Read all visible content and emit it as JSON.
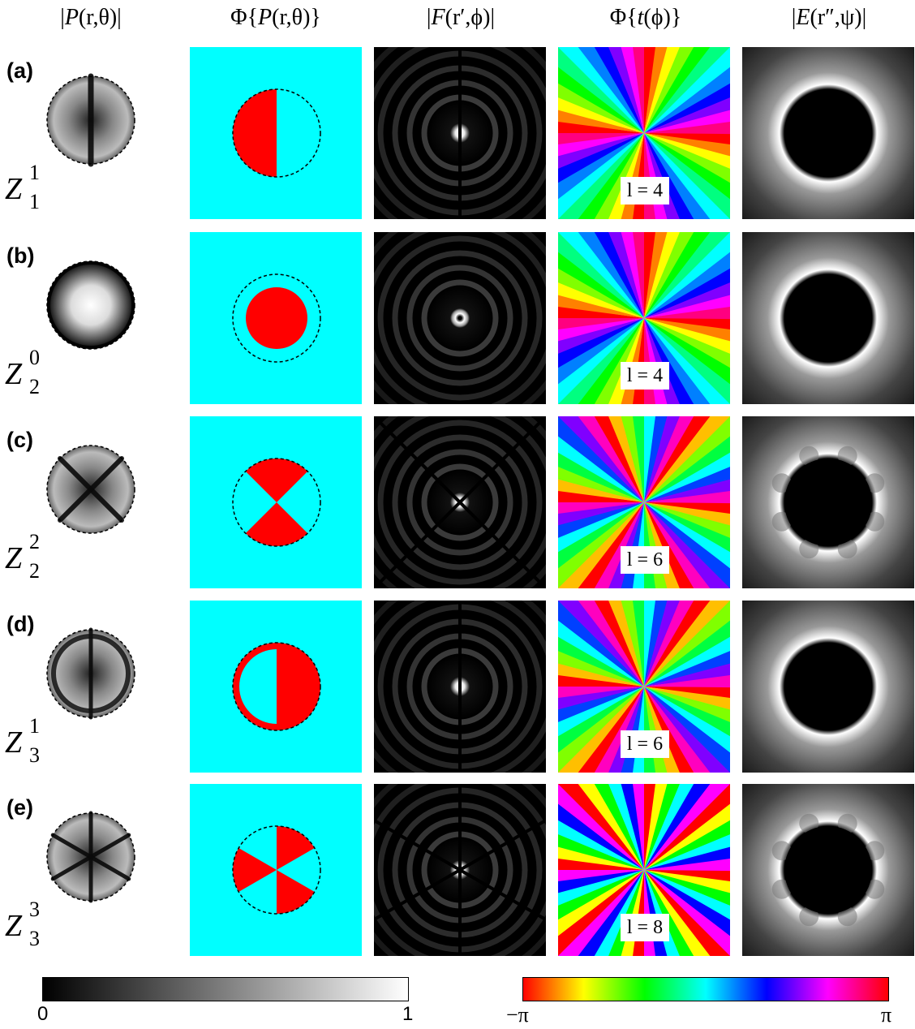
{
  "headers": [
    {
      "pre": "|",
      "it": "P",
      "post": "(r,θ)|"
    },
    {
      "pre": "Φ{",
      "it": "P",
      "post": "(r,θ)}"
    },
    {
      "pre": "|",
      "it": "F",
      "post": "(r′,ϕ)|"
    },
    {
      "pre": "Φ{",
      "it": "t",
      "post": "(ϕ)}"
    },
    {
      "pre": "|",
      "it": "E",
      "post": "(r″,ψ)|"
    }
  ],
  "rows": [
    {
      "label": "(a)",
      "zn": "1",
      "zm": "1",
      "l_text": "l = 4",
      "l": 4,
      "type": "z11"
    },
    {
      "label": "(b)",
      "zn": "2",
      "zm": "0",
      "l_text": "l = 4",
      "l": 4,
      "type": "z20"
    },
    {
      "label": "(c)",
      "zn": "2",
      "zm": "2",
      "l_text": "l = 6",
      "l": 6,
      "type": "z22"
    },
    {
      "label": "(d)",
      "zn": "3",
      "zm": "1",
      "l_text": "l = 6",
      "l": 6,
      "type": "z31"
    },
    {
      "label": "(e)",
      "zn": "3",
      "zm": "3",
      "l_text": "l = 8",
      "l": 8,
      "type": "z33"
    }
  ],
  "colorbars": {
    "gray": {
      "min": "0",
      "max": "1"
    },
    "phase": {
      "min": "−π",
      "max": "π"
    }
  },
  "colors": {
    "phase_bg": "#00ffff",
    "phase_fg": "#ff0000"
  }
}
